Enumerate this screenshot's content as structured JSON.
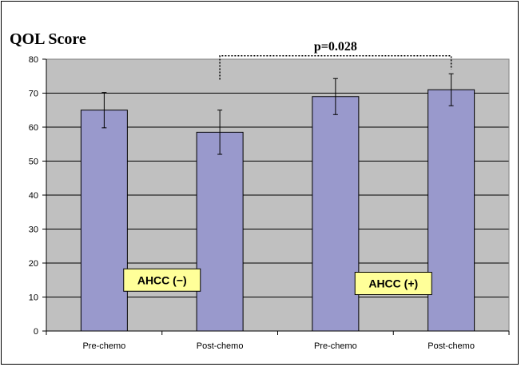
{
  "chart_data": {
    "type": "bar",
    "title": "QOL Score",
    "categories": [
      "Pre-chemo",
      "Post-chemo",
      "Pre-chemo",
      "Post-chemo"
    ],
    "values": [
      65,
      58.5,
      69,
      71
    ],
    "errors": [
      5.2,
      6.5,
      5.3,
      4.7
    ],
    "ylim": [
      0,
      80
    ],
    "yticks": [
      0,
      10,
      20,
      30,
      40,
      50,
      60,
      70,
      80
    ],
    "grid": true,
    "colors": {
      "bar": "#9999cc",
      "plot_bg": "#c0c0c0",
      "label_box": "#ffff99"
    },
    "group_labels": [
      {
        "text": "AHCC (−)",
        "value": 15
      },
      {
        "text": "AHCC (+)",
        "value": 14
      }
    ],
    "annotation": {
      "text": "p=0.028",
      "from_category": 1,
      "to_category": 3,
      "line_value": 81
    }
  }
}
